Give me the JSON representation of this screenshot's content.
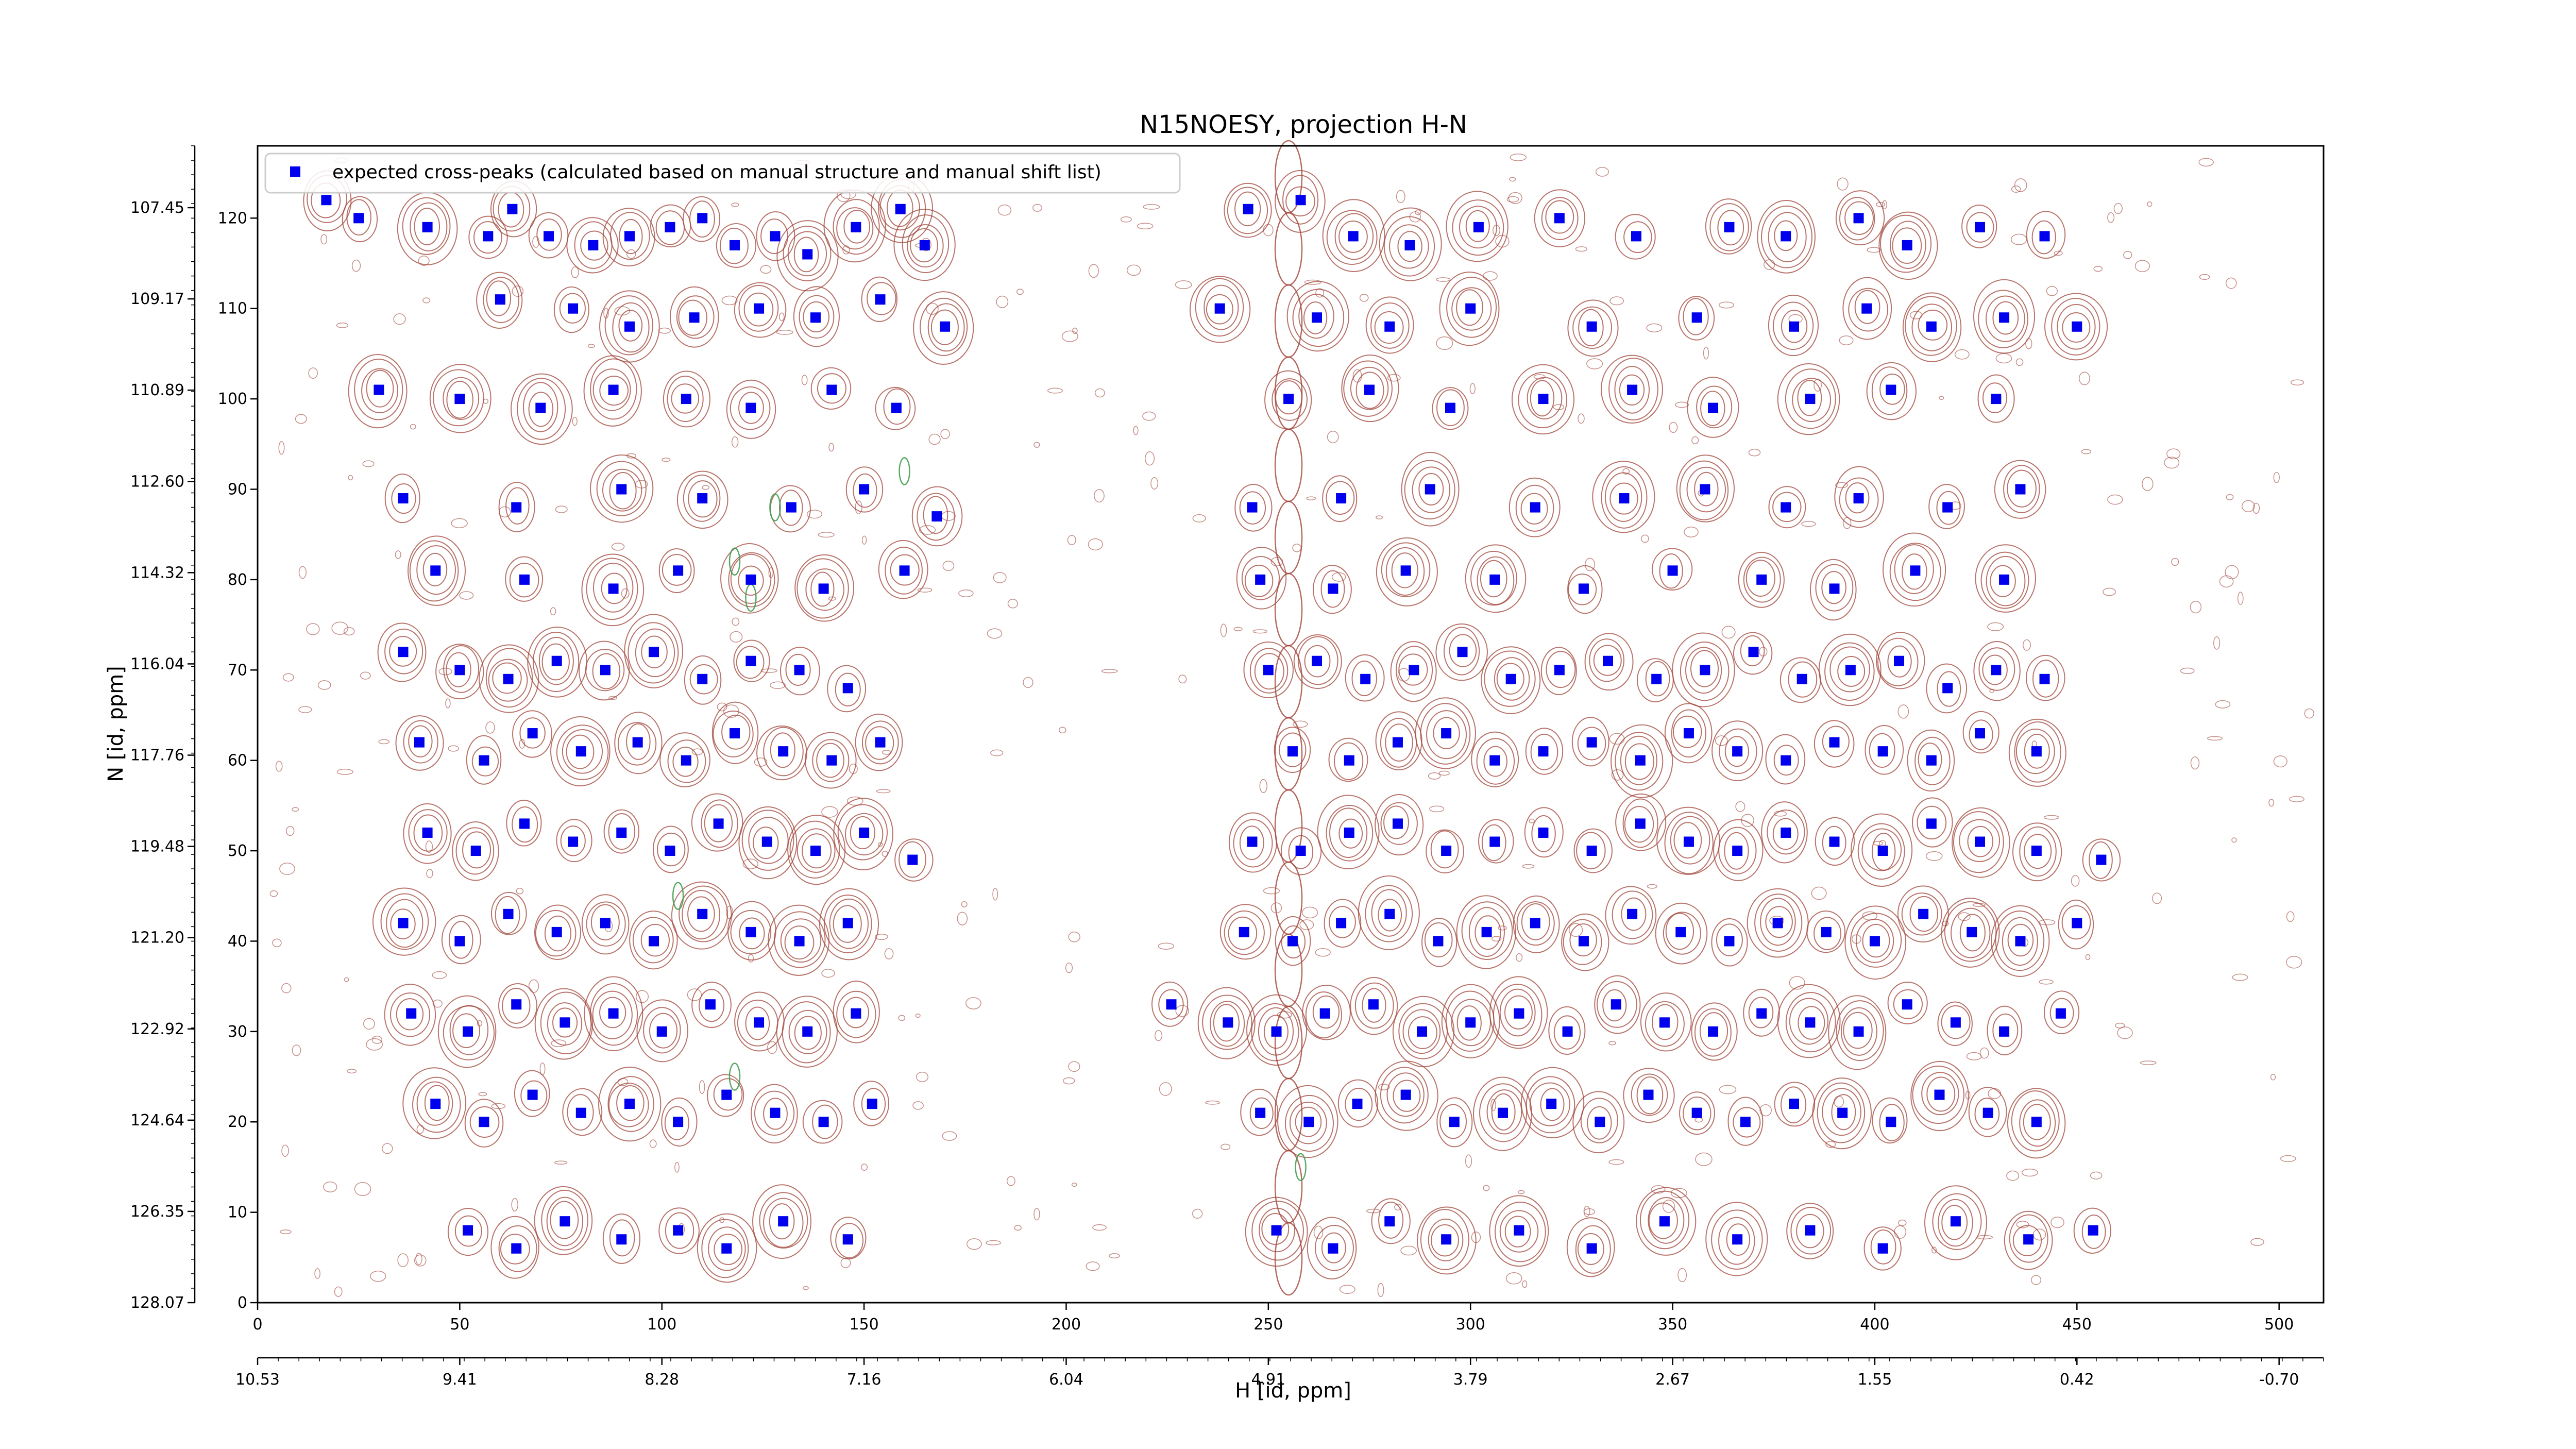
{
  "chart_data": {
    "type": "scatter",
    "title": "N15NOESY, projection H-N",
    "xlabel": "H [id, ppm]",
    "ylabel": "N [id, ppm]",
    "xlim": [
      0,
      511
    ],
    "ylim": [
      0,
      128
    ],
    "x_ticks": [
      0,
      50,
      100,
      150,
      200,
      250,
      300,
      350,
      400,
      450,
      500
    ],
    "y_ticks": [
      0,
      10,
      20,
      30,
      40,
      50,
      60,
      70,
      80,
      90,
      100,
      110,
      120
    ],
    "x_ppm_labels": [
      "10.53",
      "9.41",
      "8.28",
      "7.16",
      "6.04",
      "4.91",
      "3.79",
      "2.67",
      "1.55",
      "0.42",
      "-0.70"
    ],
    "y_ppm_labels": [
      "107.45",
      "109.17",
      "110.89",
      "112.60",
      "114.32",
      "116.04",
      "117.76",
      "119.48",
      "121.20",
      "122.92",
      "124.64",
      "126.35",
      "128.07"
    ],
    "legend": {
      "placement": "top-left",
      "entries": [
        "expected cross-peaks (calculated based on manual structure and manual shift list)"
      ]
    },
    "colors": {
      "markers": "#0000ee",
      "contours_positive": "#a0453a",
      "contours_negative": "#3a9a4a"
    },
    "series": [
      {
        "name": "expected cross-peaks (calculated based on manual structure and manual shift list)",
        "points": [
          [
            17,
            122
          ],
          [
            25,
            120
          ],
          [
            42,
            119
          ],
          [
            57,
            118
          ],
          [
            63,
            121
          ],
          [
            72,
            118
          ],
          [
            83,
            117
          ],
          [
            92,
            118
          ],
          [
            102,
            119
          ],
          [
            110,
            120
          ],
          [
            118,
            117
          ],
          [
            128,
            118
          ],
          [
            136,
            116
          ],
          [
            148,
            119
          ],
          [
            159,
            121
          ],
          [
            165,
            117
          ],
          [
            245,
            121
          ],
          [
            258,
            122
          ],
          [
            271,
            118
          ],
          [
            285,
            117
          ],
          [
            302,
            119
          ],
          [
            322,
            120
          ],
          [
            341,
            118
          ],
          [
            364,
            119
          ],
          [
            378,
            118
          ],
          [
            396,
            120
          ],
          [
            408,
            117
          ],
          [
            426,
            119
          ],
          [
            442,
            118
          ],
          [
            60,
            111
          ],
          [
            78,
            110
          ],
          [
            92,
            108
          ],
          [
            108,
            109
          ],
          [
            124,
            110
          ],
          [
            138,
            109
          ],
          [
            154,
            111
          ],
          [
            170,
            108
          ],
          [
            238,
            110
          ],
          [
            262,
            109
          ],
          [
            280,
            108
          ],
          [
            300,
            110
          ],
          [
            330,
            108
          ],
          [
            356,
            109
          ],
          [
            380,
            108
          ],
          [
            398,
            110
          ],
          [
            414,
            108
          ],
          [
            432,
            109
          ],
          [
            450,
            108
          ],
          [
            30,
            101
          ],
          [
            50,
            100
          ],
          [
            70,
            99
          ],
          [
            88,
            101
          ],
          [
            106,
            100
          ],
          [
            122,
            99
          ],
          [
            142,
            101
          ],
          [
            158,
            99
          ],
          [
            255,
            100
          ],
          [
            275,
            101
          ],
          [
            295,
            99
          ],
          [
            318,
            100
          ],
          [
            340,
            101
          ],
          [
            360,
            99
          ],
          [
            384,
            100
          ],
          [
            404,
            101
          ],
          [
            430,
            100
          ],
          [
            36,
            89
          ],
          [
            64,
            88
          ],
          [
            90,
            90
          ],
          [
            110,
            89
          ],
          [
            132,
            88
          ],
          [
            150,
            90
          ],
          [
            168,
            87
          ],
          [
            246,
            88
          ],
          [
            268,
            89
          ],
          [
            290,
            90
          ],
          [
            316,
            88
          ],
          [
            338,
            89
          ],
          [
            358,
            90
          ],
          [
            378,
            88
          ],
          [
            396,
            89
          ],
          [
            418,
            88
          ],
          [
            436,
            90
          ],
          [
            44,
            81
          ],
          [
            66,
            80
          ],
          [
            88,
            79
          ],
          [
            104,
            81
          ],
          [
            122,
            80
          ],
          [
            140,
            79
          ],
          [
            160,
            81
          ],
          [
            248,
            80
          ],
          [
            266,
            79
          ],
          [
            284,
            81
          ],
          [
            306,
            80
          ],
          [
            328,
            79
          ],
          [
            350,
            81
          ],
          [
            372,
            80
          ],
          [
            390,
            79
          ],
          [
            410,
            81
          ],
          [
            432,
            80
          ],
          [
            36,
            72
          ],
          [
            50,
            70
          ],
          [
            62,
            69
          ],
          [
            74,
            71
          ],
          [
            86,
            70
          ],
          [
            98,
            72
          ],
          [
            110,
            69
          ],
          [
            122,
            71
          ],
          [
            134,
            70
          ],
          [
            146,
            68
          ],
          [
            250,
            70
          ],
          [
            262,
            71
          ],
          [
            274,
            69
          ],
          [
            286,
            70
          ],
          [
            298,
            72
          ],
          [
            310,
            69
          ],
          [
            322,
            70
          ],
          [
            334,
            71
          ],
          [
            346,
            69
          ],
          [
            358,
            70
          ],
          [
            370,
            72
          ],
          [
            382,
            69
          ],
          [
            394,
            70
          ],
          [
            406,
            71
          ],
          [
            418,
            68
          ],
          [
            430,
            70
          ],
          [
            442,
            69
          ],
          [
            40,
            62
          ],
          [
            56,
            60
          ],
          [
            68,
            63
          ],
          [
            80,
            61
          ],
          [
            94,
            62
          ],
          [
            106,
            60
          ],
          [
            118,
            63
          ],
          [
            130,
            61
          ],
          [
            142,
            60
          ],
          [
            154,
            62
          ],
          [
            256,
            61
          ],
          [
            270,
            60
          ],
          [
            282,
            62
          ],
          [
            294,
            63
          ],
          [
            306,
            60
          ],
          [
            318,
            61
          ],
          [
            330,
            62
          ],
          [
            342,
            60
          ],
          [
            354,
            63
          ],
          [
            366,
            61
          ],
          [
            378,
            60
          ],
          [
            390,
            62
          ],
          [
            402,
            61
          ],
          [
            414,
            60
          ],
          [
            426,
            63
          ],
          [
            440,
            61
          ],
          [
            42,
            52
          ],
          [
            54,
            50
          ],
          [
            66,
            53
          ],
          [
            78,
            51
          ],
          [
            90,
            52
          ],
          [
            102,
            50
          ],
          [
            114,
            53
          ],
          [
            126,
            51
          ],
          [
            138,
            50
          ],
          [
            150,
            52
          ],
          [
            162,
            49
          ],
          [
            246,
            51
          ],
          [
            258,
            50
          ],
          [
            270,
            52
          ],
          [
            282,
            53
          ],
          [
            294,
            50
          ],
          [
            306,
            51
          ],
          [
            318,
            52
          ],
          [
            330,
            50
          ],
          [
            342,
            53
          ],
          [
            354,
            51
          ],
          [
            366,
            50
          ],
          [
            378,
            52
          ],
          [
            390,
            51
          ],
          [
            402,
            50
          ],
          [
            414,
            53
          ],
          [
            426,
            51
          ],
          [
            440,
            50
          ],
          [
            456,
            49
          ],
          [
            36,
            42
          ],
          [
            50,
            40
          ],
          [
            62,
            43
          ],
          [
            74,
            41
          ],
          [
            86,
            42
          ],
          [
            98,
            40
          ],
          [
            110,
            43
          ],
          [
            122,
            41
          ],
          [
            134,
            40
          ],
          [
            146,
            42
          ],
          [
            244,
            41
          ],
          [
            256,
            40
          ],
          [
            268,
            42
          ],
          [
            280,
            43
          ],
          [
            292,
            40
          ],
          [
            304,
            41
          ],
          [
            316,
            42
          ],
          [
            328,
            40
          ],
          [
            340,
            43
          ],
          [
            352,
            41
          ],
          [
            364,
            40
          ],
          [
            376,
            42
          ],
          [
            388,
            41
          ],
          [
            400,
            40
          ],
          [
            412,
            43
          ],
          [
            424,
            41
          ],
          [
            436,
            40
          ],
          [
            450,
            42
          ],
          [
            38,
            32
          ],
          [
            52,
            30
          ],
          [
            64,
            33
          ],
          [
            76,
            31
          ],
          [
            88,
            32
          ],
          [
            100,
            30
          ],
          [
            112,
            33
          ],
          [
            124,
            31
          ],
          [
            136,
            30
          ],
          [
            148,
            32
          ],
          [
            226,
            33
          ],
          [
            240,
            31
          ],
          [
            252,
            30
          ],
          [
            264,
            32
          ],
          [
            276,
            33
          ],
          [
            288,
            30
          ],
          [
            300,
            31
          ],
          [
            312,
            32
          ],
          [
            324,
            30
          ],
          [
            336,
            33
          ],
          [
            348,
            31
          ],
          [
            360,
            30
          ],
          [
            372,
            32
          ],
          [
            384,
            31
          ],
          [
            396,
            30
          ],
          [
            408,
            33
          ],
          [
            420,
            31
          ],
          [
            432,
            30
          ],
          [
            446,
            32
          ],
          [
            44,
            22
          ],
          [
            56,
            20
          ],
          [
            68,
            23
          ],
          [
            80,
            21
          ],
          [
            92,
            22
          ],
          [
            104,
            20
          ],
          [
            116,
            23
          ],
          [
            128,
            21
          ],
          [
            140,
            20
          ],
          [
            152,
            22
          ],
          [
            248,
            21
          ],
          [
            260,
            20
          ],
          [
            272,
            22
          ],
          [
            284,
            23
          ],
          [
            296,
            20
          ],
          [
            308,
            21
          ],
          [
            320,
            22
          ],
          [
            332,
            20
          ],
          [
            344,
            23
          ],
          [
            356,
            21
          ],
          [
            368,
            20
          ],
          [
            380,
            22
          ],
          [
            392,
            21
          ],
          [
            404,
            20
          ],
          [
            416,
            23
          ],
          [
            428,
            21
          ],
          [
            440,
            20
          ],
          [
            52,
            8
          ],
          [
            64,
            6
          ],
          [
            76,
            9
          ],
          [
            90,
            7
          ],
          [
            104,
            8
          ],
          [
            116,
            6
          ],
          [
            130,
            9
          ],
          [
            146,
            7
          ],
          [
            252,
            8
          ],
          [
            266,
            6
          ],
          [
            280,
            9
          ],
          [
            294,
            7
          ],
          [
            312,
            8
          ],
          [
            330,
            6
          ],
          [
            348,
            9
          ],
          [
            366,
            7
          ],
          [
            384,
            8
          ],
          [
            402,
            6
          ],
          [
            420,
            9
          ],
          [
            438,
            7
          ],
          [
            454,
            8
          ]
        ]
      }
    ]
  }
}
